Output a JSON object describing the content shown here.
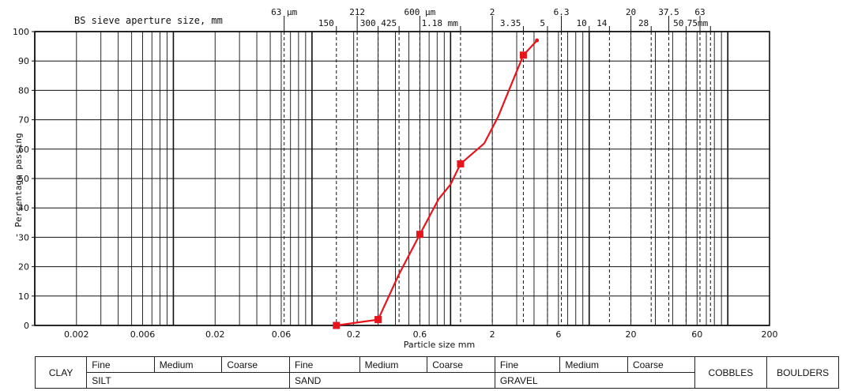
{
  "chart_data": {
    "type": "line",
    "title": "",
    "top_axis_title": "BS sieve aperture size, mm",
    "xlabel": "Particle size mm",
    "ylabel": "Percentage passing",
    "x_scale": "log",
    "xlim": [
      0.001,
      200
    ],
    "ylim": [
      0,
      100
    ],
    "y_ticks": [
      0,
      10,
      20,
      30,
      40,
      50,
      60,
      70,
      80,
      90,
      100
    ],
    "y_tick_labels": [
      "0",
      "10",
      "20",
      "'30",
      "40",
      "50",
      "60",
      "70",
      "80",
      "90",
      "100"
    ],
    "x_ticks": [
      {
        "value": 0.002,
        "label": "0.002"
      },
      {
        "value": 0.006,
        "label": "0.006"
      },
      {
        "value": 0.02,
        "label": "0.02"
      },
      {
        "value": 0.06,
        "label": "0.06"
      },
      {
        "value": 0.2,
        "label": "0.2"
      },
      {
        "value": 0.6,
        "label": "0.6"
      },
      {
        "value": 2,
        "label": "2"
      },
      {
        "value": 6,
        "label": "6"
      },
      {
        "value": 20,
        "label": "20"
      },
      {
        "value": 60,
        "label": "60"
      },
      {
        "value": 200,
        "label": "200"
      }
    ],
    "sieve_sizes": [
      {
        "value": 0.063,
        "label": "63 µm",
        "row": 0
      },
      {
        "value": 0.15,
        "label": "150",
        "row": 1
      },
      {
        "value": 0.212,
        "label": "212",
        "row": 0
      },
      {
        "value": 0.3,
        "label": "300",
        "row": 1
      },
      {
        "value": 0.425,
        "label": "425",
        "row": 1
      },
      {
        "value": 0.6,
        "label": "600 µm",
        "row": 0
      },
      {
        "value": 1.18,
        "label": "1.18 mm",
        "row": 1
      },
      {
        "value": 2,
        "label": "2",
        "row": 0
      },
      {
        "value": 3.35,
        "label": "3.35",
        "row": 1
      },
      {
        "value": 5,
        "label": "5",
        "row": 1
      },
      {
        "value": 6.3,
        "label": "6.3",
        "row": 0
      },
      {
        "value": 10,
        "label": "10",
        "row": 1
      },
      {
        "value": 14,
        "label": "14",
        "row": 1
      },
      {
        "value": 20,
        "label": "20",
        "row": 0
      },
      {
        "value": 28,
        "label": "28",
        "row": 1
      },
      {
        "value": 37.5,
        "label": "37.5",
        "row": 0
      },
      {
        "value": 50,
        "label": "50",
        "row": 1
      },
      {
        "value": 63,
        "label": "63",
        "row": 0
      },
      {
        "value": 75,
        "label": "75mm",
        "row": 1
      }
    ],
    "series": [
      {
        "color": "#e8141b",
        "points": [
          {
            "x": 0.15,
            "y": 0,
            "marker": true
          },
          {
            "x": 0.3,
            "y": 2,
            "marker": true
          },
          {
            "x": 0.42,
            "y": 17
          },
          {
            "x": 0.6,
            "y": 31,
            "marker": true
          },
          {
            "x": 0.82,
            "y": 43
          },
          {
            "x": 1.0,
            "y": 48
          },
          {
            "x": 1.18,
            "y": 55,
            "marker": true
          },
          {
            "x": 1.75,
            "y": 62
          },
          {
            "x": 2.2,
            "y": 71
          },
          {
            "x": 3.35,
            "y": 92,
            "marker": true
          },
          {
            "x": 4.2,
            "y": 97
          }
        ]
      }
    ]
  },
  "table": {
    "clay": "CLAY",
    "silt_fine": "Fine",
    "silt_medium": "Medium",
    "silt_coarse": "Coarse",
    "sand_fine": "Fine",
    "sand_medium": "Medium",
    "sand_coarse": "Coarse",
    "gravel_fine": "Fine",
    "gravel_medium": "Medium",
    "gravel_coarse": "Coarse",
    "cobbles": "COBBLES",
    "boulders": "BOULDERS",
    "silt": "SILT",
    "sand": "SAND",
    "gravel": "GRAVEL"
  }
}
